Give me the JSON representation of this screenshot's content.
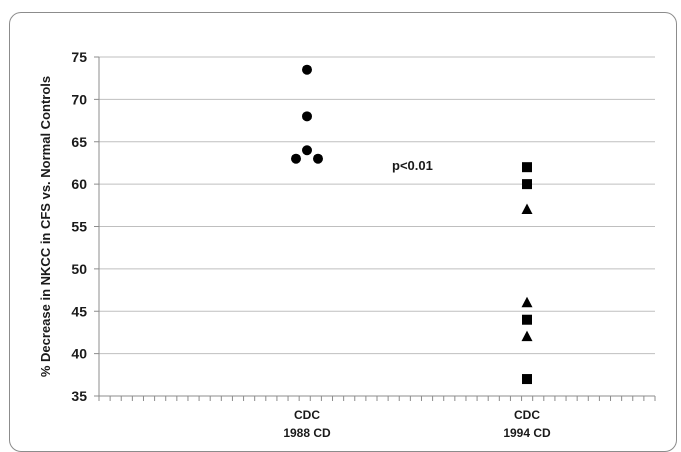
{
  "chart_data": {
    "type": "scatter",
    "ylabel": "% Decrease in NKCC in CFS vs. Normal Controls",
    "ylim": [
      35,
      75
    ],
    "yticks": [
      35,
      40,
      45,
      50,
      55,
      60,
      65,
      70,
      75
    ],
    "grid": true,
    "categories": [
      {
        "line1": "CDC",
        "line2": "1988 CD"
      },
      {
        "line1": "CDC",
        "line2": "1994 CD"
      }
    ],
    "annotation": "p<0.01",
    "points": [
      {
        "category": 0,
        "offset": 0,
        "y": 73.5,
        "marker": "circle"
      },
      {
        "category": 0,
        "offset": 0,
        "y": 68,
        "marker": "circle"
      },
      {
        "category": 0,
        "offset": 0,
        "y": 64,
        "marker": "circle"
      },
      {
        "category": 0,
        "offset": -1,
        "y": 63,
        "marker": "circle"
      },
      {
        "category": 0,
        "offset": 1,
        "y": 63,
        "marker": "circle"
      },
      {
        "category": 1,
        "offset": 0,
        "y": 62,
        "marker": "square"
      },
      {
        "category": 1,
        "offset": 0,
        "y": 60,
        "marker": "square"
      },
      {
        "category": 1,
        "offset": 0,
        "y": 57,
        "marker": "triangle"
      },
      {
        "category": 1,
        "offset": 0,
        "y": 46,
        "marker": "triangle"
      },
      {
        "category": 1,
        "offset": 0,
        "y": 44,
        "marker": "square"
      },
      {
        "category": 1,
        "offset": 0,
        "y": 42,
        "marker": "triangle"
      },
      {
        "category": 1,
        "offset": 0,
        "y": 37,
        "marker": "square"
      }
    ],
    "colors": {
      "marker": "#000000",
      "grid": "#bfbfbf",
      "axis": "#8c8c8c"
    }
  }
}
